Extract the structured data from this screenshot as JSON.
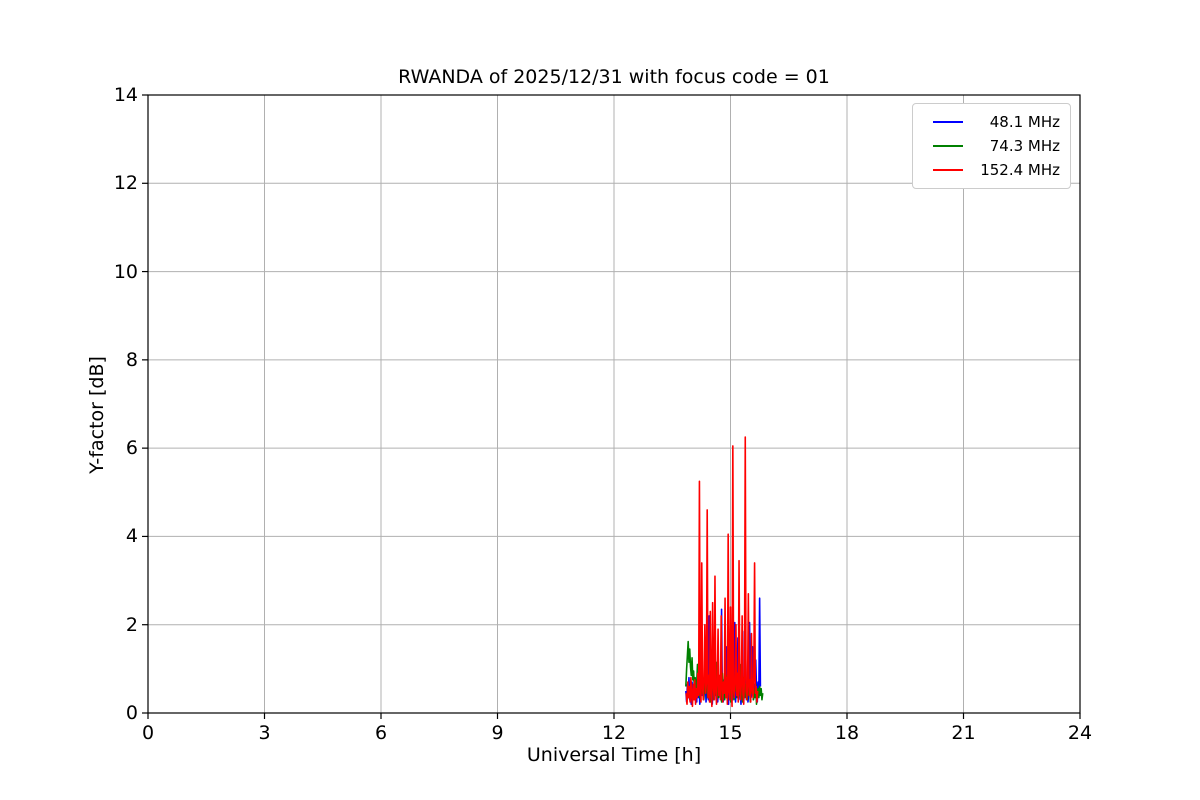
{
  "figure": {
    "title": "RWANDA of 2025/12/31 with focus code = 01",
    "xlabel": "Universal Time [h]",
    "ylabel": "Y-factor [dB]"
  },
  "legend": {
    "items": [
      {
        "label": "48.1 MHz",
        "color": "#0000ff"
      },
      {
        "label": "74.3 MHz",
        "color": "#008000"
      },
      {
        "label": "152.4 MHz",
        "color": "#ff0000"
      }
    ]
  },
  "colors": {
    "background": "#ffffff",
    "axis": "#000000",
    "grid": "#b0b0b0",
    "legend_border": "#cccccc",
    "blue_series": "#0000ff",
    "green_series": "#008000",
    "red_series": "#ff0000"
  },
  "chart_data": {
    "type": "line",
    "title": "RWANDA of 2025/12/31 with focus code = 01",
    "xlabel": "Universal Time [h]",
    "ylabel": "Y-factor [dB]",
    "xlim": [
      0,
      24
    ],
    "ylim": [
      0,
      14
    ],
    "xticks": [
      0,
      3,
      6,
      9,
      12,
      15,
      18,
      21,
      24
    ],
    "yticks": [
      0,
      2,
      4,
      6,
      8,
      10,
      12,
      14
    ],
    "grid": true,
    "legend_position": "upper right",
    "series": [
      {
        "name": "48.1 MHz",
        "color": "#0000ff",
        "x_start": 13.85,
        "x_step": 0.02,
        "values": [
          0.5,
          0.25,
          0.65,
          0.35,
          0.8,
          0.3,
          0.55,
          0.2,
          0.7,
          0.4,
          0.6,
          0.3,
          0.75,
          0.45,
          0.25,
          0.85,
          0.35,
          0.6,
          0.2,
          0.5,
          1.3,
          0.4,
          0.7,
          0.3,
          0.55,
          0.8,
          0.25,
          0.65,
          0.45,
          0.3,
          2.2,
          0.6,
          0.35,
          0.75,
          0.2,
          0.5,
          1.6,
          0.4,
          0.8,
          0.3,
          0.65,
          0.25,
          0.55,
          0.7,
          0.35,
          0.6,
          2.35,
          0.45,
          0.25,
          0.75,
          0.3,
          0.5,
          1.5,
          0.4,
          0.65,
          0.2,
          0.8,
          0.35,
          1.4,
          0.55,
          0.3,
          0.7,
          0.45,
          2.05,
          0.25,
          0.6,
          0.4,
          1.7,
          0.3,
          0.75,
          0.5,
          0.2,
          0.65,
          1.85,
          0.35,
          0.55,
          0.8,
          1.3,
          0.3,
          0.6,
          0.25,
          0.45,
          2.05,
          0.7,
          0.35,
          0.5,
          1.5,
          0.3,
          0.65,
          0.4,
          1.2,
          0.55,
          0.25,
          0.7,
          0.45,
          2.6,
          0.6
        ]
      },
      {
        "name": "74.3 MHz",
        "color": "#008000",
        "x_start": 13.85,
        "x_step": 0.02,
        "values": [
          0.6,
          1.0,
          1.3,
          1.62,
          1.15,
          1.45,
          1.05,
          0.85,
          1.25,
          0.75,
          0.95,
          0.55,
          0.8,
          0.4,
          0.7,
          1.1,
          0.5,
          0.85,
          0.35,
          0.65,
          0.9,
          0.45,
          0.75,
          0.3,
          0.6,
          1.0,
          0.5,
          0.8,
          0.35,
          0.7,
          0.45,
          0.9,
          0.25,
          0.65,
          0.5,
          0.85,
          0.3,
          0.75,
          0.55,
          0.4,
          1.15,
          0.6,
          0.35,
          0.8,
          0.45,
          0.7,
          0.25,
          0.9,
          0.5,
          0.65,
          0.3,
          0.75,
          0.4,
          0.85,
          0.55,
          1.05,
          0.35,
          0.7,
          0.25,
          0.6,
          0.45,
          0.8,
          0.3,
          0.65,
          0.5,
          0.9,
          0.35,
          0.75,
          0.4,
          0.6,
          1.1,
          0.45,
          0.7,
          0.25,
          0.55,
          0.8,
          0.35,
          0.65,
          0.5,
          0.3,
          0.9,
          0.4,
          0.7,
          0.25,
          0.6,
          0.45,
          0.75,
          0.3,
          0.55,
          0.35,
          0.65,
          0.2,
          0.5,
          0.55,
          0.35,
          0.6,
          0.4,
          0.55,
          0.3,
          0.45
        ]
      },
      {
        "name": "152.4 MHz",
        "color": "#ff0000",
        "x_start": 13.86,
        "x_step": 0.02,
        "values": [
          0.45,
          0.2,
          0.7,
          0.35,
          0.6,
          0.25,
          0.8,
          0.4,
          0.15,
          0.65,
          0.3,
          0.75,
          0.2,
          0.55,
          0.35,
          0.9,
          0.4,
          5.25,
          0.5,
          0.25,
          3.4,
          0.6,
          0.3,
          0.8,
          2.0,
          0.45,
          0.7,
          4.6,
          0.35,
          0.85,
          0.25,
          2.3,
          0.5,
          0.15,
          2.5,
          0.65,
          0.3,
          3.1,
          0.55,
          0.2,
          0.75,
          1.9,
          0.4,
          0.85,
          0.3,
          2.2,
          0.6,
          0.25,
          0.7,
          0.45,
          2.6,
          0.35,
          0.8,
          0.2,
          4.05,
          0.5,
          0.3,
          2.4,
          0.65,
          0.15,
          6.05,
          0.55,
          0.35,
          0.75,
          2.0,
          0.4,
          0.9,
          0.25,
          3.45,
          0.6,
          0.3,
          0.7,
          2.2,
          0.45,
          0.2,
          0.85,
          6.25,
          0.5,
          0.3,
          0.65,
          2.7,
          0.4,
          0.75,
          0.25,
          1.8,
          0.55,
          0.35,
          0.8,
          3.4,
          0.45,
          0.6,
          0.25,
          0.5
        ]
      }
    ]
  }
}
